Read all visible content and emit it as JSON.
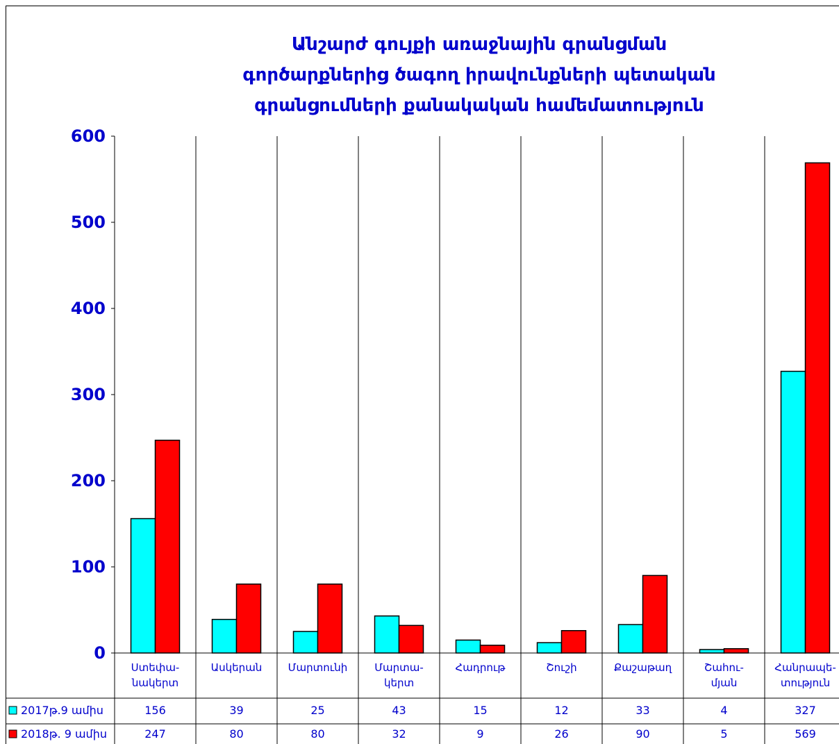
{
  "chart_data": {
    "type": "bar",
    "title": "Անշարժ  գույքի առաջնային  գրանցման\nգործարքներից  ծագող իրավունքների պետական\nգրանցումների քանակական համեմատություն",
    "categories": [
      "Ստեփա-\nնակերտ",
      "Ասկերան",
      "Մարտունի",
      "Մարտա-\nկերտ",
      "Հադրութ",
      "Շուշի",
      "Քաշաթաղ",
      "Շահու-\nմյան",
      "Հանրապե-\nտություն"
    ],
    "series": [
      {
        "name": "2017թ.9 ամիս",
        "color": "#00ffff",
        "values": [
          156,
          39,
          25,
          43,
          15,
          12,
          33,
          4,
          327
        ]
      },
      {
        "name": "2018թ. 9 ամիս",
        "color": "#ff0000",
        "values": [
          247,
          80,
          80,
          32,
          9,
          26,
          90,
          5,
          569
        ]
      }
    ],
    "ylim": [
      0,
      600
    ],
    "yticks": [
      0,
      100,
      200,
      300,
      400,
      500,
      600
    ]
  }
}
